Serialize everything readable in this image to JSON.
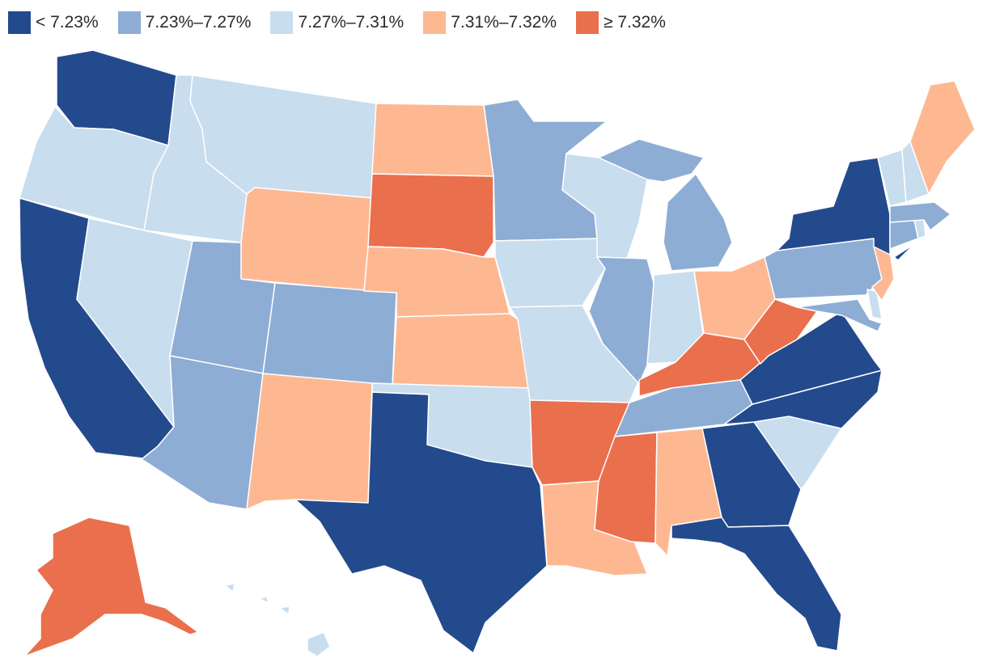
{
  "colors": {
    "below_7_23": "#234a8c",
    "7_23_to_7_27": "#8eadd5",
    "7_27_to_7_31": "#c8ddee",
    "7_31_to_7_32": "#fdb892",
    "at_least_7_32": "#ea6f4c"
  },
  "legend": [
    {
      "label": "< 7.23%",
      "color": "#234a8c"
    },
    {
      "label": "7.23%–7.27%",
      "color": "#8eadd5"
    },
    {
      "label": "7.27%–7.31%",
      "color": "#c8ddee"
    },
    {
      "label": "7.31%–7.32%",
      "color": "#fdb892"
    },
    {
      "label": "≥ 7.32%",
      "color": "#ea6f4c"
    }
  ],
  "states": {
    "WA": {
      "bin": "< 7.23%"
    },
    "OR": {
      "bin": "7.27%–7.31%"
    },
    "CA": {
      "bin": "< 7.23%"
    },
    "ID": {
      "bin": "7.27%–7.31%"
    },
    "NV": {
      "bin": "7.27%–7.31%"
    },
    "MT": {
      "bin": "7.27%–7.31%"
    },
    "WY": {
      "bin": "7.31%–7.32%"
    },
    "UT": {
      "bin": "7.23%–7.27%"
    },
    "AZ": {
      "bin": "7.23%–7.27%"
    },
    "CO": {
      "bin": "7.23%–7.27%"
    },
    "NM": {
      "bin": "7.31%–7.32%"
    },
    "ND": {
      "bin": "7.31%–7.32%"
    },
    "SD": {
      "bin": "≥ 7.32%"
    },
    "NE": {
      "bin": "7.31%–7.32%"
    },
    "KS": {
      "bin": "7.31%–7.32%"
    },
    "OK": {
      "bin": "7.27%–7.31%"
    },
    "TX": {
      "bin": "< 7.23%"
    },
    "MN": {
      "bin": "7.23%–7.27%"
    },
    "IA": {
      "bin": "7.27%–7.31%"
    },
    "MO": {
      "bin": "7.27%–7.31%"
    },
    "AR": {
      "bin": "≥ 7.32%"
    },
    "LA": {
      "bin": "7.31%–7.32%"
    },
    "WI": {
      "bin": "7.27%–7.31%"
    },
    "IL": {
      "bin": "7.23%–7.27%"
    },
    "MI": {
      "bin": "7.23%–7.27%"
    },
    "IN": {
      "bin": "7.27%–7.31%"
    },
    "OH": {
      "bin": "7.31%–7.32%"
    },
    "KY": {
      "bin": "≥ 7.32%"
    },
    "TN": {
      "bin": "7.23%–7.27%"
    },
    "MS": {
      "bin": "≥ 7.32%"
    },
    "AL": {
      "bin": "7.31%–7.32%"
    },
    "GA": {
      "bin": "< 7.23%"
    },
    "FL": {
      "bin": "< 7.23%"
    },
    "SC": {
      "bin": "7.27%–7.31%"
    },
    "NC": {
      "bin": "< 7.23%"
    },
    "VA": {
      "bin": "< 7.23%"
    },
    "WV": {
      "bin": "≥ 7.32%"
    },
    "PA": {
      "bin": "7.23%–7.27%"
    },
    "NY": {
      "bin": "< 7.23%"
    },
    "NJ": {
      "bin": "7.31%–7.32%"
    },
    "DE": {
      "bin": "7.27%–7.31%"
    },
    "MD": {
      "bin": "7.23%–7.27%"
    },
    "CT": {
      "bin": "7.23%–7.27%"
    },
    "RI": {
      "bin": "7.27%–7.31%"
    },
    "MA": {
      "bin": "7.23%–7.27%"
    },
    "VT": {
      "bin": "7.27%–7.31%"
    },
    "NH": {
      "bin": "7.27%–7.31%"
    },
    "ME": {
      "bin": "7.31%–7.32%"
    },
    "AK": {
      "bin": "≥ 7.32%"
    },
    "HI": {
      "bin": "7.27%–7.31%"
    }
  }
}
